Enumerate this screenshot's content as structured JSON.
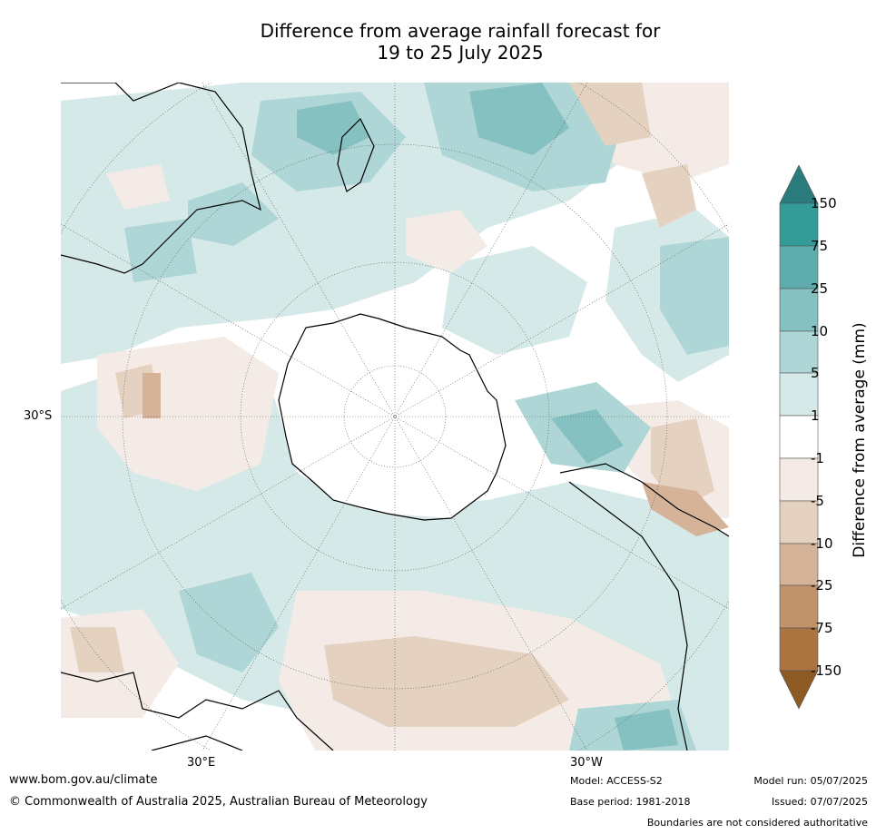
{
  "title_line1": "Difference from average rainfall forecast for",
  "title_line2": "19 to 25 July 2025",
  "map": {
    "lat_label": "30°S",
    "lon_label_left": "30°E",
    "lon_label_right": "30°W",
    "colors": {
      "wet_150": "#2a7c7c",
      "wet_75": "#339b98",
      "wet_25": "#5eacac",
      "wet_10": "#84c1c0",
      "wet_5": "#afd6d6",
      "wet_1": "#d5e9e8",
      "neutral": "#ffffff",
      "dry_1": "#f4ebe6",
      "dry_5": "#e5d1c0",
      "dry_10": "#d4b398",
      "dry_25": "#c0936a",
      "dry_75": "#ab7440",
      "dry_150": "#8e5a23"
    }
  },
  "colorbar": {
    "label": "Difference from average (mm)",
    "ticks": [
      "150",
      "75",
      "25",
      "10",
      "5",
      "1",
      "-1",
      "-5",
      "-10",
      "-25",
      "-75",
      "-150"
    ]
  },
  "footer": {
    "website": "www.bom.gov.au/climate",
    "copyright": "© Commonwealth of Australia 2025, Australian Bureau of Meteorology",
    "model": "Model: ACCESS-S2",
    "base_period": "Base period: 1981-2018",
    "model_run": "Model run: 05/07/2025",
    "issued": "Issued: 07/07/2025",
    "disclaimer": "Boundaries are not considered authoritative"
  }
}
